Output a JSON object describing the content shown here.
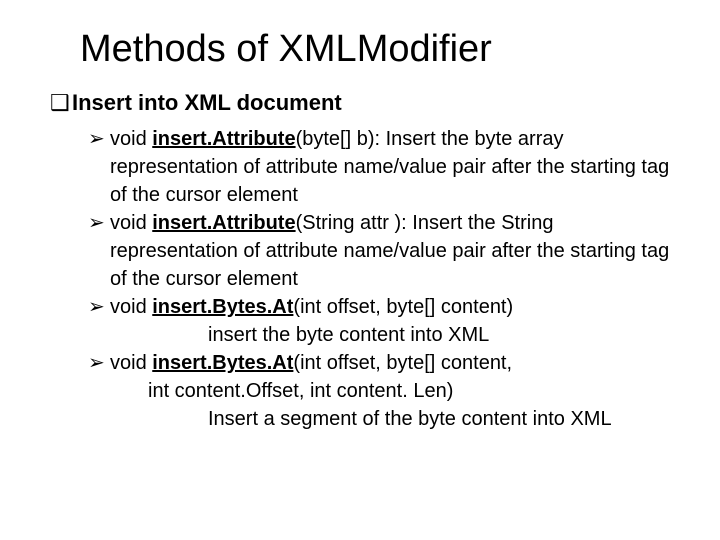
{
  "title": "Methods of XMLModifier",
  "section": {
    "bullet_glyph": "❑",
    "heading": "Insert into XML document"
  },
  "sub_bullet_glyph": "➢",
  "items": [
    {
      "prefix": "void  ",
      "method": "insert.Attribute",
      "signature": "(byte[] b): Insert the byte array representation of attribute name/value pair after the starting tag of the cursor element",
      "cont_lines": []
    },
    {
      "prefix": "void ",
      "method": "insert.Attribute",
      "signature": "(String attr ): Insert the String representation of attribute name/value pair after the starting tag of the cursor element",
      "cont_lines": []
    },
    {
      "prefix": "void ",
      "method": "insert.Bytes.At",
      "signature": "(int offset, byte[] content)",
      "cont_lines": [
        "insert the byte content into XML"
      ]
    },
    {
      "prefix": "void ",
      "method": "insert.Bytes.At",
      "signature": "(int offset, byte[] content, ",
      "tail_lines": [
        "int content.Offset, int content. Len)"
      ],
      "cont_lines": [
        "Insert a segment of the byte content into XML"
      ]
    }
  ],
  "colors": {
    "background": "#ffffff",
    "text": "#000000"
  },
  "fontsizes": {
    "title": 38,
    "l1": 22,
    "l2": 20
  }
}
